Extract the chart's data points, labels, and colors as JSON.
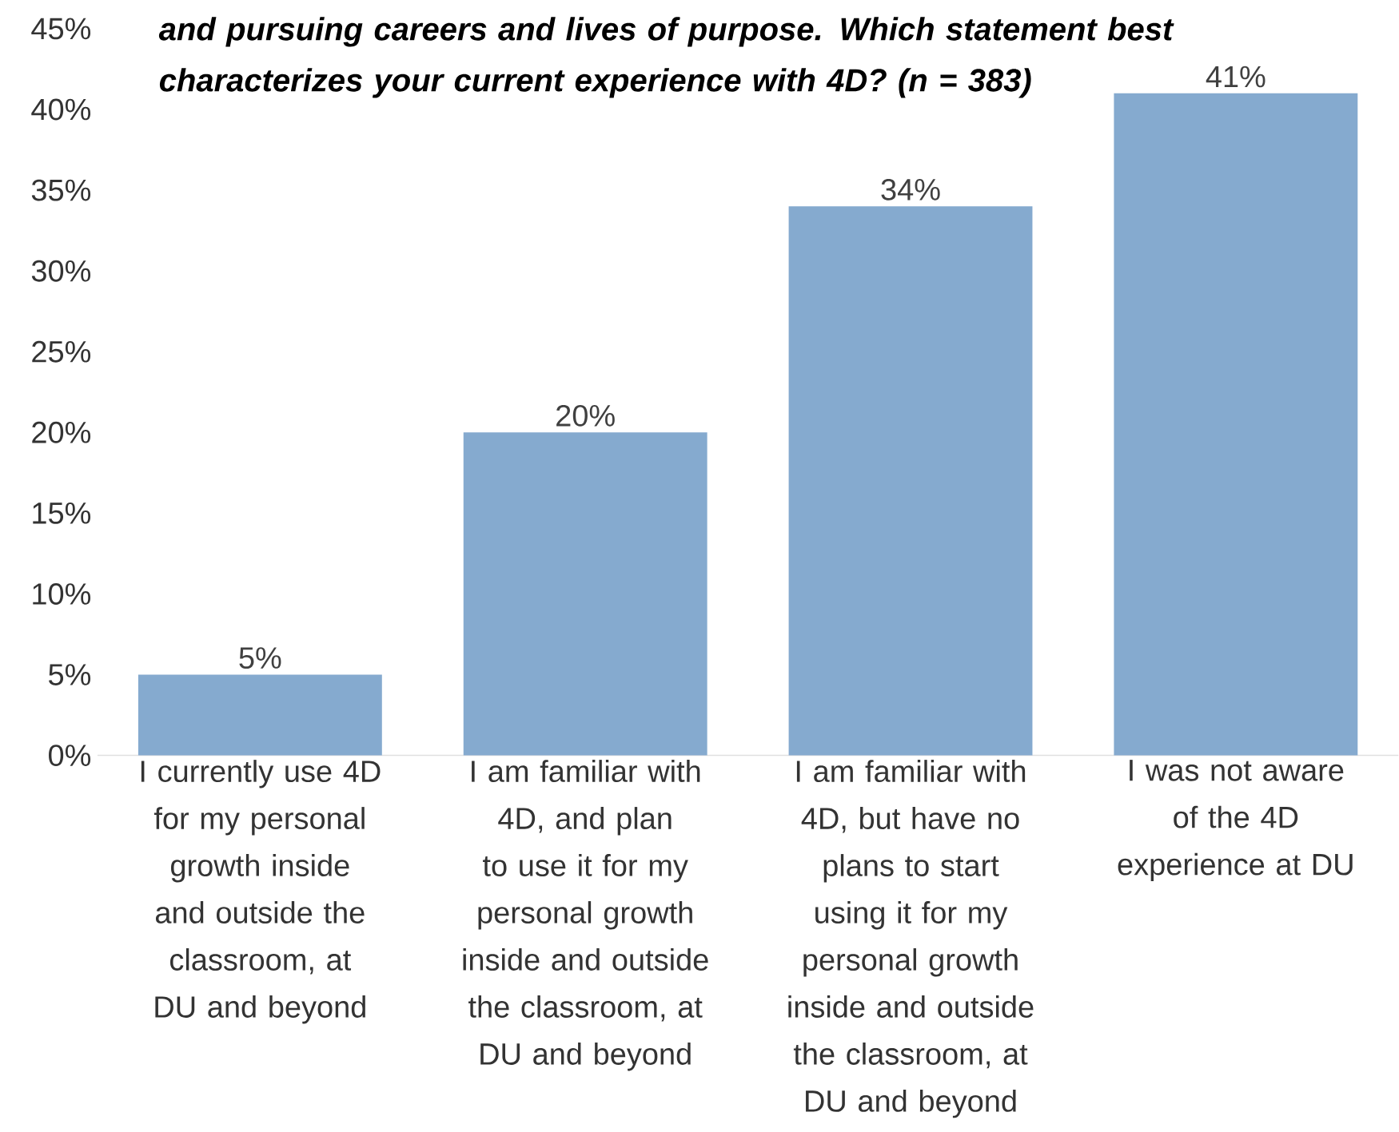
{
  "chart_data": {
    "type": "bar",
    "title": "and pursuing careers and lives of purpose. Which statement best characterizes your current experience with 4D? (n = 383)",
    "categories": [
      "I currently use 4D for my personal growth inside and outside the classroom, at DU and beyond",
      "I am familiar with 4D, and plan to use it for my personal growth inside and outside the classroom, at DU and beyond",
      "I am familiar with 4D, but have no plans to start using it for my personal growth inside and outside the classroom, at DU and beyond",
      "I was not aware of the 4D experience at DU"
    ],
    "values": [
      5,
      20,
      34,
      41
    ],
    "value_labels": [
      "5%",
      "20%",
      "34%",
      "41%"
    ],
    "color": "#85aacf",
    "ylim": [
      0,
      45
    ],
    "yticks": [
      {
        "value": 0,
        "label": "0%"
      },
      {
        "value": 5,
        "label": "5%"
      },
      {
        "value": 10,
        "label": "10%"
      },
      {
        "value": 15,
        "label": "15%"
      },
      {
        "value": 20,
        "label": "20%"
      },
      {
        "value": 25,
        "label": "25%"
      },
      {
        "value": 30,
        "label": "30%"
      },
      {
        "value": 35,
        "label": "35%"
      },
      {
        "value": 40,
        "label": "40%"
      },
      {
        "value": 45,
        "label": "45%"
      }
    ],
    "grid": false
  }
}
